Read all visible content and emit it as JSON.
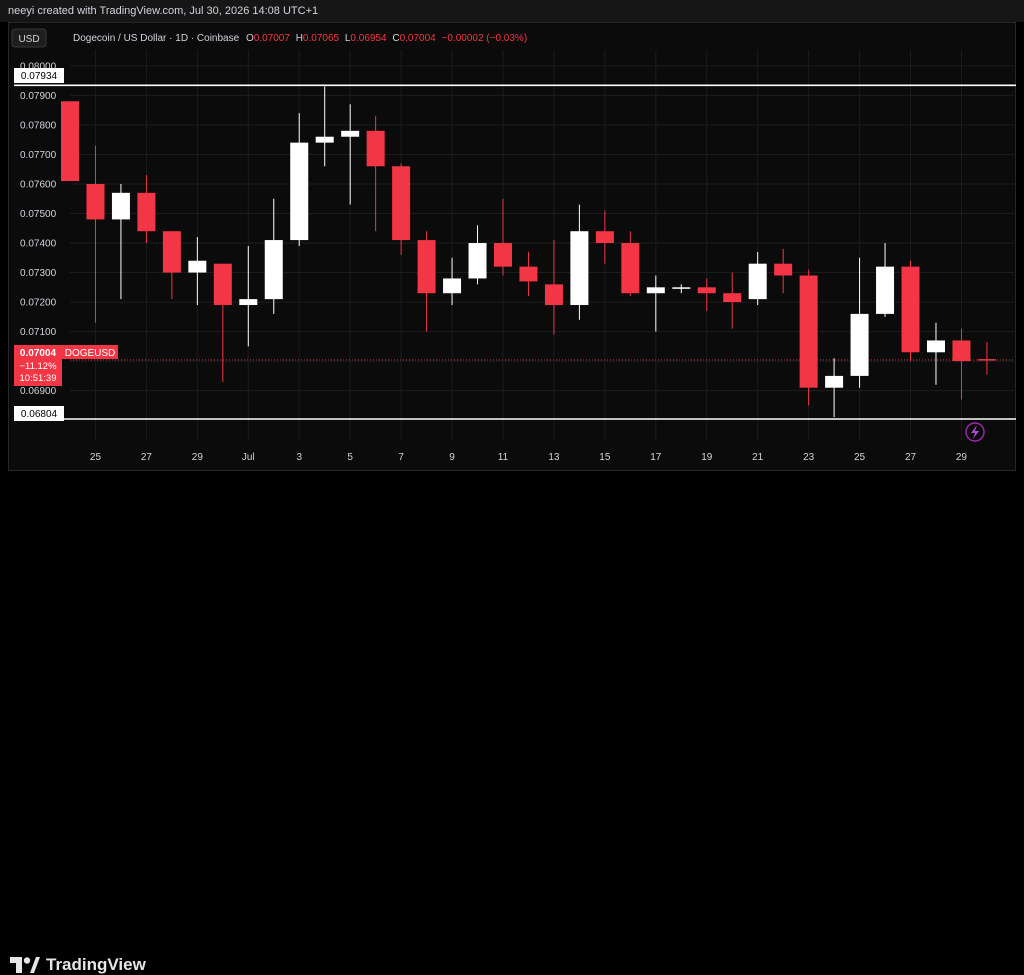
{
  "header": {
    "created_by": "neeyi created with TradingView.com, Jul 30, 2026 14:08 UTC+1"
  },
  "legend": {
    "currency_button": "USD",
    "symbol": "Dogecoin / US Dollar · 1D · Coinbase",
    "open_label": "O",
    "open_value": "0.07007",
    "high_label": "H",
    "high_value": "0.07065",
    "low_label": "L",
    "low_value": "0.06954",
    "close_label": "C",
    "close_value": "0.07004",
    "change_value": "−0.00002 (−0.03%)"
  },
  "price_badge": {
    "price": "0.07004",
    "symbol": "DOGEUSD",
    "change_pct": "−11.12%",
    "countdown": "10:51:39"
  },
  "horizontal_lines": [
    {
      "label": "0.07934",
      "value": 0.07934
    },
    {
      "label": "0.06804",
      "value": 0.06804
    }
  ],
  "footer": {
    "brand": "TradingView"
  },
  "colors": {
    "up": "#ffffff",
    "down": "#f23645",
    "background": "#0b0b0b",
    "grid": "#1c1c1c"
  },
  "chart_data": {
    "type": "candlestick",
    "ylim": [
      0.0676,
      0.0803
    ],
    "y_ticks": [
      "0.08000",
      "0.07900",
      "0.07800",
      "0.07700",
      "0.07600",
      "0.07500",
      "0.07400",
      "0.07300",
      "0.07200",
      "0.07100",
      "0.07000",
      "0.06900"
    ],
    "x_ticks": [
      {
        "index": 1,
        "label": "25"
      },
      {
        "index": 3,
        "label": "27"
      },
      {
        "index": 5,
        "label": "29"
      },
      {
        "index": 7,
        "label": "Jul"
      },
      {
        "index": 9,
        "label": "3"
      },
      {
        "index": 11,
        "label": "5"
      },
      {
        "index": 13,
        "label": "7"
      },
      {
        "index": 15,
        "label": "9"
      },
      {
        "index": 17,
        "label": "11"
      },
      {
        "index": 19,
        "label": "13"
      },
      {
        "index": 21,
        "label": "15"
      },
      {
        "index": 23,
        "label": "17"
      },
      {
        "index": 25,
        "label": "19"
      },
      {
        "index": 27,
        "label": "21"
      },
      {
        "index": 29,
        "label": "23"
      },
      {
        "index": 31,
        "label": "25"
      },
      {
        "index": 33,
        "label": "27"
      },
      {
        "index": 35,
        "label": "29"
      }
    ],
    "candles": [
      {
        "o": 0.0788,
        "h": 0.0788,
        "l": 0.0761,
        "c": 0.0761
      },
      {
        "o": 0.076,
        "h": 0.0773,
        "l": 0.0713,
        "c": 0.0748
      },
      {
        "o": 0.0748,
        "h": 0.076,
        "l": 0.0721,
        "c": 0.0757
      },
      {
        "o": 0.0757,
        "h": 0.0763,
        "l": 0.074,
        "c": 0.0744
      },
      {
        "o": 0.0744,
        "h": 0.0744,
        "l": 0.0721,
        "c": 0.073
      },
      {
        "o": 0.073,
        "h": 0.0742,
        "l": 0.0719,
        "c": 0.0734
      },
      {
        "o": 0.0733,
        "h": 0.0733,
        "l": 0.0693,
        "c": 0.0719
      },
      {
        "o": 0.0719,
        "h": 0.0739,
        "l": 0.0705,
        "c": 0.0721
      },
      {
        "o": 0.0721,
        "h": 0.0755,
        "l": 0.0716,
        "c": 0.0741
      },
      {
        "o": 0.0741,
        "h": 0.0784,
        "l": 0.0739,
        "c": 0.0774
      },
      {
        "o": 0.0774,
        "h": 0.0793,
        "l": 0.0766,
        "c": 0.0776
      },
      {
        "o": 0.0776,
        "h": 0.0787,
        "l": 0.0753,
        "c": 0.0778
      },
      {
        "o": 0.0778,
        "h": 0.0783,
        "l": 0.0744,
        "c": 0.0766
      },
      {
        "o": 0.0766,
        "h": 0.0767,
        "l": 0.0736,
        "c": 0.0741
      },
      {
        "o": 0.0741,
        "h": 0.0744,
        "l": 0.071,
        "c": 0.0723
      },
      {
        "o": 0.0723,
        "h": 0.0735,
        "l": 0.0719,
        "c": 0.0728
      },
      {
        "o": 0.0728,
        "h": 0.0746,
        "l": 0.0726,
        "c": 0.074
      },
      {
        "o": 0.074,
        "h": 0.0755,
        "l": 0.0729,
        "c": 0.0732
      },
      {
        "o": 0.0732,
        "h": 0.0737,
        "l": 0.0722,
        "c": 0.0727
      },
      {
        "o": 0.0726,
        "h": 0.0741,
        "l": 0.0709,
        "c": 0.0719
      },
      {
        "o": 0.0719,
        "h": 0.0753,
        "l": 0.0714,
        "c": 0.0744
      },
      {
        "o": 0.0744,
        "h": 0.0751,
        "l": 0.0733,
        "c": 0.074
      },
      {
        "o": 0.074,
        "h": 0.0744,
        "l": 0.0722,
        "c": 0.0723
      },
      {
        "o": 0.0723,
        "h": 0.0729,
        "l": 0.071,
        "c": 0.0725
      },
      {
        "o": 0.0725,
        "h": 0.0726,
        "l": 0.0723,
        "c": 0.0725
      },
      {
        "o": 0.0725,
        "h": 0.0728,
        "l": 0.0717,
        "c": 0.0723
      },
      {
        "o": 0.0723,
        "h": 0.073,
        "l": 0.0711,
        "c": 0.072
      },
      {
        "o": 0.0721,
        "h": 0.0737,
        "l": 0.0719,
        "c": 0.0733
      },
      {
        "o": 0.0733,
        "h": 0.0738,
        "l": 0.0723,
        "c": 0.0729
      },
      {
        "o": 0.0729,
        "h": 0.0731,
        "l": 0.0685,
        "c": 0.0691
      },
      {
        "o": 0.0691,
        "h": 0.0701,
        "l": 0.0681,
        "c": 0.0695
      },
      {
        "o": 0.0695,
        "h": 0.0735,
        "l": 0.0691,
        "c": 0.0716
      },
      {
        "o": 0.0716,
        "h": 0.074,
        "l": 0.0715,
        "c": 0.0732
      },
      {
        "o": 0.0732,
        "h": 0.0734,
        "l": 0.07,
        "c": 0.0703
      },
      {
        "o": 0.0703,
        "h": 0.0713,
        "l": 0.0692,
        "c": 0.0707
      },
      {
        "o": 0.0707,
        "h": 0.0711,
        "l": 0.0687,
        "c": 0.07
      },
      {
        "o": 0.07007,
        "h": 0.07065,
        "l": 0.06954,
        "c": 0.07004
      }
    ]
  }
}
